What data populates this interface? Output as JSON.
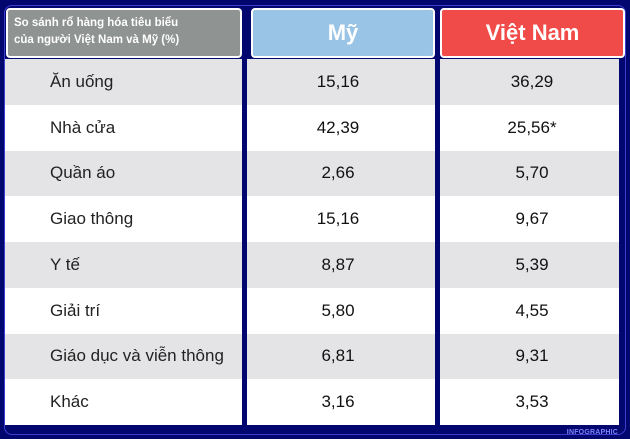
{
  "header": {
    "title_line1": "So sánh rổ hàng hóa tiêu biểu",
    "title_line2": "của người Việt Nam và Mỹ (%)"
  },
  "chart_data": {
    "type": "table",
    "columns": [
      "Mỹ",
      "Việt Nam"
    ],
    "categories": [
      "Ăn uống",
      "Nhà cửa",
      "Quần áo",
      "Giao thông",
      "Y tế",
      "Giải trí",
      "Giáo dục và viễn thông",
      "Khác"
    ],
    "series": [
      {
        "name": "Mỹ",
        "values": [
          "15,16",
          "42,39",
          "2,66",
          "15,16",
          "8,87",
          "5,80",
          "6,81",
          "3,16"
        ]
      },
      {
        "name": "Việt Nam",
        "values": [
          "36,29",
          "25,56*",
          "5,70",
          "9,67",
          "5,39",
          "4,55",
          "9,31",
          "3,53"
        ]
      }
    ]
  },
  "colors": {
    "background": "#02066f",
    "my_header": "#99c4e6",
    "vn_header": "#f14b49",
    "label_header": "#8f9391"
  },
  "watermark": "INFOGRAPHIC"
}
